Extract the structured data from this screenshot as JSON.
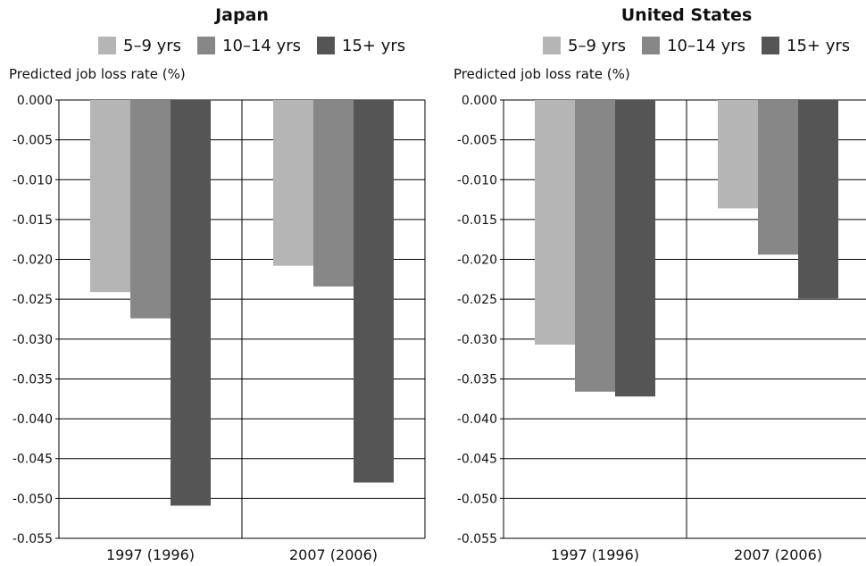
{
  "chart_data": [
    {
      "type": "bar",
      "title": "Japan",
      "ylabel": "Predicted job loss rate (%)",
      "xlabel": "",
      "categories": [
        "1997 (1996)",
        "2007 (2006)"
      ],
      "series": [
        {
          "name": "5–9 yrs",
          "color": "#b5b5b5",
          "values": [
            -0.0241,
            -0.0208
          ]
        },
        {
          "name": "10–14 yrs",
          "color": "#878787",
          "values": [
            -0.0274,
            -0.0234
          ]
        },
        {
          "name": "15+ yrs",
          "color": "#555555",
          "values": [
            -0.0509,
            -0.048
          ]
        }
      ],
      "ylim": [
        -0.055,
        0.0
      ],
      "yticks": [
        "0.000",
        "-0.005",
        "-0.010",
        "-0.015",
        "-0.020",
        "-0.025",
        "-0.030",
        "-0.035",
        "-0.040",
        "-0.045",
        "-0.050",
        "-0.055"
      ],
      "grid": true,
      "legend": "top"
    },
    {
      "type": "bar",
      "title": "United States",
      "ylabel": "Predicted job loss rate (%)",
      "xlabel": "",
      "categories": [
        "1997 (1996)",
        "2007 (2006)"
      ],
      "series": [
        {
          "name": "5–9 yrs",
          "color": "#b5b5b5",
          "values": [
            -0.0307,
            -0.0136
          ]
        },
        {
          "name": "10–14 yrs",
          "color": "#878787",
          "values": [
            -0.0366,
            -0.0194
          ]
        },
        {
          "name": "15+ yrs",
          "color": "#555555",
          "values": [
            -0.0372,
            -0.0249
          ]
        }
      ],
      "ylim": [
        -0.055,
        0.0
      ],
      "yticks": [
        "0.000",
        "-0.005",
        "-0.010",
        "-0.015",
        "-0.020",
        "-0.025",
        "-0.030",
        "-0.035",
        "-0.040",
        "-0.045",
        "-0.050",
        "-0.055"
      ],
      "grid": true,
      "legend": "top"
    }
  ]
}
